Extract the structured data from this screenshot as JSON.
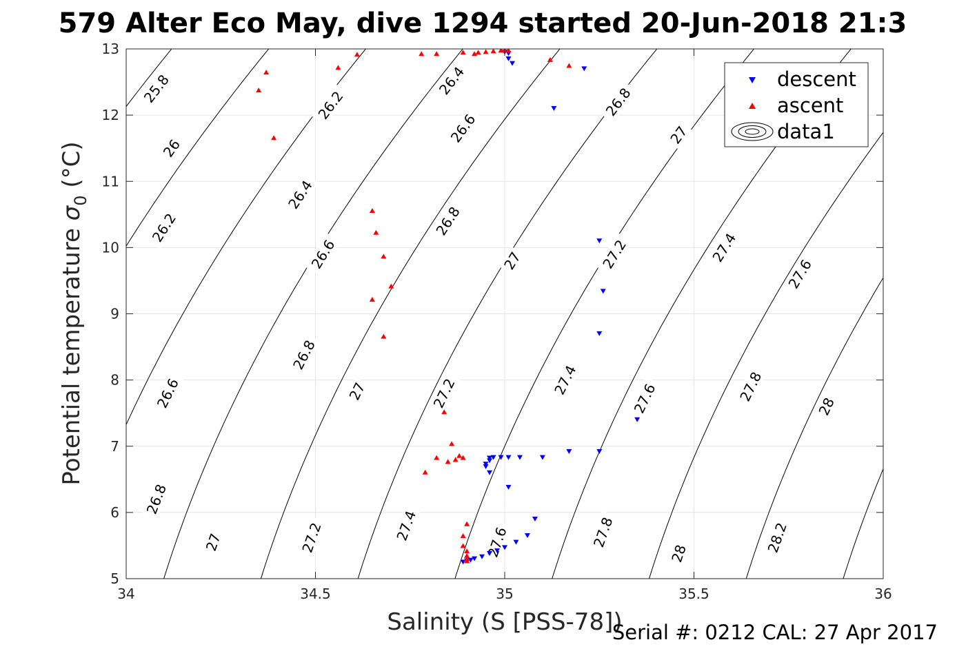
{
  "title": "579 Alter Eco May, dive 1294 started 20-Jun-2018 21:3",
  "footer": "Serial #: 0212  CAL: 27 Apr 2017",
  "chart_data": {
    "type": "scatter",
    "xlabel": "Salinity (S [PSS-78])",
    "ylabel_main": "Potential temperature ",
    "ylabel_symbol": "σ",
    "ylabel_sub": "0",
    "ylabel_unit": " (°C)",
    "xlim": [
      34,
      36
    ],
    "ylim": [
      5,
      13
    ],
    "grid": true,
    "legend_position": "top-right",
    "x_ticks": [
      34,
      34.5,
      35,
      35.5,
      36
    ],
    "x_tick_labels": [
      "34",
      "34.5",
      "35",
      "35.5",
      "36"
    ],
    "y_ticks": [
      5,
      6,
      7,
      8,
      9,
      10,
      11,
      12,
      13
    ],
    "y_tick_labels": [
      "5",
      "6",
      "7",
      "8",
      "9",
      "10",
      "11",
      "12",
      "13"
    ],
    "colors": {
      "descent": "#0000ff",
      "ascent": "#ff0000",
      "contour": "#000000",
      "grid": "#e5e5e5"
    },
    "series": [
      {
        "name": "descent",
        "marker": "triangle-down",
        "points": [
          [
            35.21,
            12.7
          ],
          [
            35.13,
            12.1
          ],
          [
            35.02,
            12.78
          ],
          [
            35.01,
            12.85
          ],
          [
            35.01,
            12.93
          ],
          [
            35.0,
            12.95
          ],
          [
            35.25,
            10.1
          ],
          [
            35.26,
            9.34
          ],
          [
            35.25,
            8.7
          ],
          [
            35.35,
            7.4
          ],
          [
            35.25,
            6.92
          ],
          [
            35.17,
            6.92
          ],
          [
            35.1,
            6.83
          ],
          [
            35.04,
            6.83
          ],
          [
            35.01,
            6.83
          ],
          [
            34.99,
            6.83
          ],
          [
            34.97,
            6.83
          ],
          [
            34.96,
            6.82
          ],
          [
            34.96,
            6.78
          ],
          [
            34.95,
            6.73
          ],
          [
            34.95,
            6.69
          ],
          [
            34.96,
            6.6
          ],
          [
            35.01,
            6.38
          ],
          [
            35.08,
            5.9
          ],
          [
            35.06,
            5.65
          ],
          [
            35.03,
            5.55
          ],
          [
            35.0,
            5.47
          ],
          [
            34.98,
            5.42
          ],
          [
            34.96,
            5.38
          ],
          [
            34.94,
            5.33
          ],
          [
            34.92,
            5.3
          ],
          [
            34.91,
            5.28
          ],
          [
            34.9,
            5.27
          ],
          [
            34.89,
            5.25
          ]
        ]
      },
      {
        "name": "ascent",
        "marker": "triangle-up",
        "points": [
          [
            34.37,
            12.65
          ],
          [
            34.35,
            12.38
          ],
          [
            34.39,
            11.66
          ],
          [
            34.56,
            12.72
          ],
          [
            34.61,
            12.92
          ],
          [
            34.78,
            12.93
          ],
          [
            34.82,
            12.93
          ],
          [
            34.89,
            12.95
          ],
          [
            34.92,
            12.93
          ],
          [
            34.93,
            12.95
          ],
          [
            34.95,
            12.96
          ],
          [
            34.97,
            12.97
          ],
          [
            34.99,
            12.98
          ],
          [
            35.0,
            12.98
          ],
          [
            35.01,
            12.98
          ],
          [
            35.12,
            12.84
          ],
          [
            35.17,
            12.75
          ],
          [
            34.65,
            10.56
          ],
          [
            34.66,
            10.23
          ],
          [
            34.68,
            9.87
          ],
          [
            34.7,
            9.42
          ],
          [
            34.65,
            9.22
          ],
          [
            34.68,
            8.66
          ],
          [
            34.84,
            7.52
          ],
          [
            34.86,
            7.04
          ],
          [
            34.82,
            6.83
          ],
          [
            34.85,
            6.77
          ],
          [
            34.87,
            6.8
          ],
          [
            34.88,
            6.86
          ],
          [
            34.89,
            6.83
          ],
          [
            34.79,
            6.61
          ],
          [
            34.9,
            5.83
          ],
          [
            34.89,
            5.65
          ],
          [
            34.89,
            5.5
          ],
          [
            34.9,
            5.42
          ],
          [
            34.9,
            5.35
          ],
          [
            34.9,
            5.3
          ],
          [
            34.9,
            5.27
          ]
        ]
      }
    ],
    "contour_legend_label": "data1",
    "contour_levels": [
      "25.8",
      "26",
      "26.2",
      "26.4",
      "26.6",
      "26.8",
      "27",
      "27.2",
      "27.4",
      "27.6",
      "27.8",
      "28",
      "28.2"
    ],
    "contour_labels": [
      {
        "text": "25.8",
        "x": 34.08,
        "y": 12.4
      },
      {
        "text": "26",
        "x": 34.12,
        "y": 11.5
      },
      {
        "text": "26.2",
        "x": 34.1,
        "y": 10.3
      },
      {
        "text": "26.6",
        "x": 34.11,
        "y": 7.8
      },
      {
        "text": "26.8",
        "x": 34.08,
        "y": 6.2
      },
      {
        "text": "27",
        "x": 34.23,
        "y": 5.55
      },
      {
        "text": "26.2",
        "x": 34.54,
        "y": 12.15
      },
      {
        "text": "26.4",
        "x": 34.46,
        "y": 10.8
      },
      {
        "text": "26.6",
        "x": 34.52,
        "y": 9.9
      },
      {
        "text": "26.8",
        "x": 34.47,
        "y": 8.38
      },
      {
        "text": "27",
        "x": 34.61,
        "y": 7.83
      },
      {
        "text": "27.2",
        "x": 34.49,
        "y": 5.62
      },
      {
        "text": "27.4",
        "x": 34.74,
        "y": 5.8
      },
      {
        "text": "26.4",
        "x": 34.86,
        "y": 12.52
      },
      {
        "text": "26.6",
        "x": 34.89,
        "y": 11.8
      },
      {
        "text": "26.8",
        "x": 34.85,
        "y": 10.4
      },
      {
        "text": "27",
        "x": 35.02,
        "y": 9.8
      },
      {
        "text": "27.2",
        "x": 34.84,
        "y": 7.8
      },
      {
        "text": "27.6",
        "x": 34.98,
        "y": 5.55
      },
      {
        "text": "26.8",
        "x": 35.3,
        "y": 12.2
      },
      {
        "text": "27",
        "x": 35.46,
        "y": 11.7
      },
      {
        "text": "27.2",
        "x": 35.29,
        "y": 9.9
      },
      {
        "text": "27.4",
        "x": 35.16,
        "y": 8.0
      },
      {
        "text": "27.4",
        "x": 35.58,
        "y": 10.0
      },
      {
        "text": "27.6",
        "x": 35.37,
        "y": 7.72
      },
      {
        "text": "27.6",
        "x": 35.78,
        "y": 9.6
      },
      {
        "text": "27.8",
        "x": 35.26,
        "y": 5.7
      },
      {
        "text": "27.8",
        "x": 35.65,
        "y": 7.9
      },
      {
        "text": "28",
        "x": 35.46,
        "y": 5.38
      },
      {
        "text": "28",
        "x": 35.85,
        "y": 7.6
      },
      {
        "text": "28.2",
        "x": 35.72,
        "y": 5.62
      }
    ]
  }
}
